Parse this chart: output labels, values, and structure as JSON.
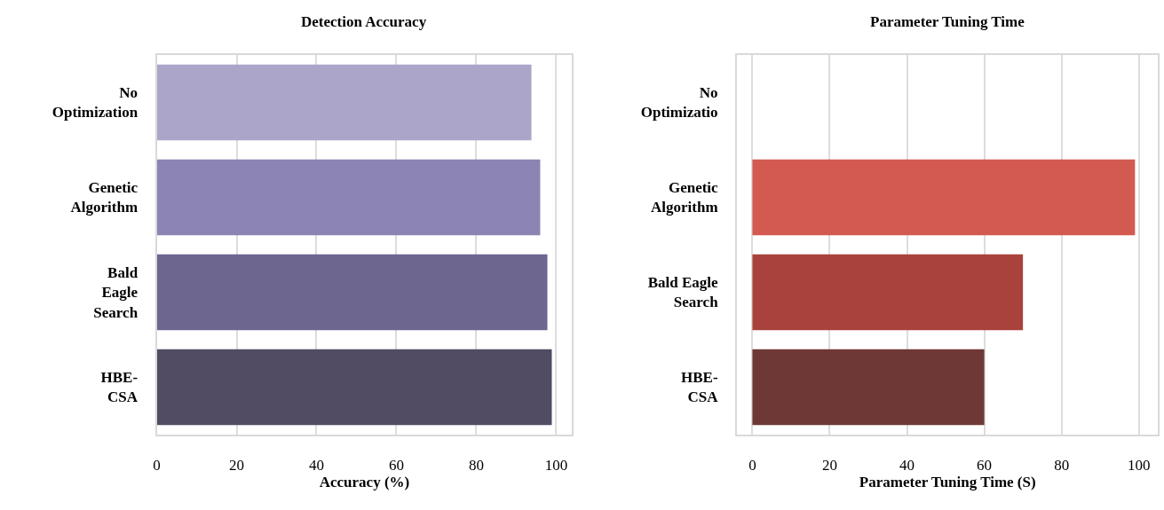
{
  "chart_data": [
    {
      "type": "bar",
      "orientation": "horizontal",
      "title": "Detection Accuracy",
      "xlabel": "Accuracy (%)",
      "categories": [
        "No\nOptimization",
        "Genetic\nAlgorithm",
        "Bald\nEagle\nSearch",
        "HBE-\nCSA"
      ],
      "values": [
        93.8,
        96,
        97.8,
        98.9
      ],
      "colors": [
        "#aba6c9",
        "#8c84b2",
        "#6d668e",
        "#514c63"
      ],
      "xlim": [
        0,
        104
      ],
      "xticks": [
        0,
        20,
        40,
        60,
        80,
        100
      ],
      "grid": "x"
    },
    {
      "type": "bar",
      "orientation": "horizontal",
      "title": "Parameter Tuning Time",
      "xlabel": "Parameter Tuning Time (S)",
      "categories": [
        "No\nOptimizatio",
        "Genetic\nAlgorithm",
        "Bald Eagle\nSearch",
        "HBE-\nCSA"
      ],
      "values": [
        null,
        99,
        70,
        60
      ],
      "colors": [
        "#ffffff",
        "#d35a51",
        "#a9423c",
        "#6e3836"
      ],
      "xlim": [
        -4,
        105
      ],
      "xticks": [
        0,
        20,
        40,
        60,
        80,
        100
      ],
      "grid": "x"
    }
  ]
}
